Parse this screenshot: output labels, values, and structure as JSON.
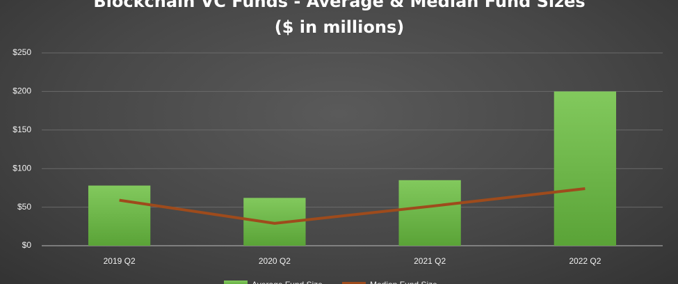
{
  "chart_data": {
    "type": "bar_line",
    "title": "Blockchain VC Funds - Average & Median Fund Sizes ($ in millions)",
    "categories": [
      "2019 Q2",
      "2020 Q2",
      "2021 Q2",
      "2022 Q2"
    ],
    "series": [
      {
        "name": "Average Fund Size",
        "type": "bar",
        "color": "#6db84a",
        "values": [
          78,
          62,
          85,
          200
        ]
      },
      {
        "name": "Median Fund Size",
        "type": "line",
        "color": "#9e4b1c",
        "values": [
          59,
          29,
          51,
          74
        ]
      }
    ],
    "ylim": [
      0,
      250
    ],
    "yticks": [
      {
        "value": 0,
        "label": "$0"
      },
      {
        "value": 50,
        "label": "$50"
      },
      {
        "value": 100,
        "label": "$100"
      },
      {
        "value": 150,
        "label": "$150"
      },
      {
        "value": 200,
        "label": "$200"
      },
      {
        "value": 250,
        "label": "$250"
      }
    ],
    "grid": true
  }
}
